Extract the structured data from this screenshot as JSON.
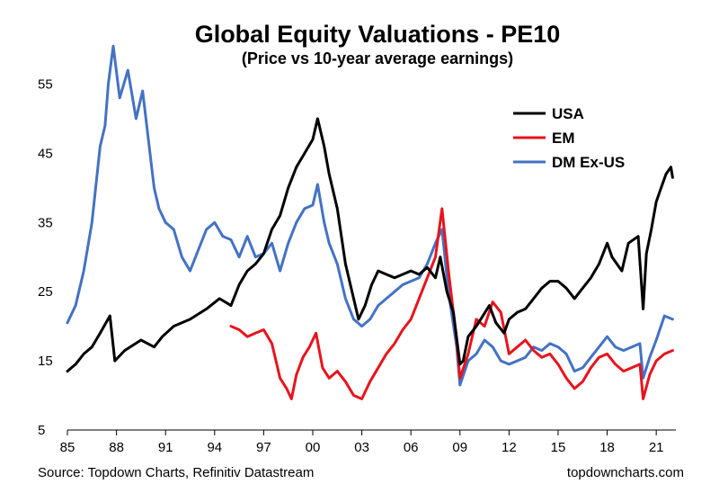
{
  "chart_data": {
    "type": "line",
    "title": "Global Equity Valuations - PE10",
    "subtitle": "(Price vs 10-year average earnings)",
    "xlabel": "",
    "ylabel": "",
    "xlim": [
      1985,
      2022.2
    ],
    "ylim": [
      5,
      60
    ],
    "xticks": [
      1985,
      1988,
      1991,
      1994,
      1997,
      2000,
      2003,
      2006,
      2009,
      2012,
      2015,
      2018,
      2021
    ],
    "xtick_labels": [
      "85",
      "88",
      "91",
      "94",
      "97",
      "00",
      "03",
      "06",
      "09",
      "12",
      "15",
      "18",
      "21"
    ],
    "yticks": [
      5,
      15,
      25,
      35,
      45,
      55
    ],
    "ytick_labels": [
      "5",
      "15",
      "25",
      "35",
      "45",
      "55"
    ],
    "grid": false,
    "legend_position": "top-right",
    "series": [
      {
        "name": "USA",
        "color": "#000000",
        "x": [
          1985.0,
          1985.5,
          1986.0,
          1986.5,
          1987.0,
          1987.6,
          1987.9,
          1988.5,
          1989.5,
          1990.3,
          1990.8,
          1991.5,
          1992.5,
          1993.5,
          1994.3,
          1995.0,
          1995.5,
          1996.0,
          1996.5,
          1997.0,
          1997.5,
          1998.0,
          1998.5,
          1999.0,
          1999.5,
          2000.0,
          2000.3,
          2000.7,
          2001.0,
          2001.5,
          2002.0,
          2002.5,
          2002.8,
          2003.2,
          2003.6,
          2004.0,
          2004.5,
          2005.0,
          2005.5,
          2006.0,
          2006.5,
          2007.0,
          2007.5,
          2007.8,
          2008.2,
          2008.6,
          2009.0,
          2009.2,
          2009.5,
          2010.0,
          2010.4,
          2010.8,
          2011.2,
          2011.7,
          2012.0,
          2012.5,
          2013.0,
          2013.5,
          2014.0,
          2014.5,
          2015.0,
          2015.5,
          2016.0,
          2016.5,
          2017.0,
          2017.5,
          2018.0,
          2018.3,
          2018.9,
          2019.3,
          2019.9,
          2020.2,
          2020.4,
          2020.7,
          2021.0,
          2021.3,
          2021.6,
          2021.9,
          2022.0
        ],
        "values": [
          13.5,
          14.5,
          16.0,
          17.0,
          19.0,
          21.5,
          15.0,
          16.5,
          18.0,
          17.0,
          18.5,
          20.0,
          21.0,
          22.5,
          24.0,
          23.0,
          26.0,
          28.0,
          29.0,
          30.5,
          34.0,
          36.0,
          40.0,
          43.0,
          45.0,
          47.0,
          50.0,
          46.0,
          42.0,
          37.0,
          29.0,
          24.0,
          21.0,
          23.0,
          26.0,
          28.0,
          27.5,
          27.0,
          27.5,
          28.0,
          27.5,
          28.5,
          27.0,
          30.0,
          25.0,
          22.0,
          14.5,
          15.0,
          18.5,
          20.0,
          21.5,
          23.0,
          20.5,
          19.0,
          21.0,
          22.0,
          22.5,
          24.0,
          25.5,
          26.5,
          26.5,
          25.5,
          24.0,
          25.5,
          27.0,
          29.0,
          32.0,
          30.0,
          28.0,
          32.0,
          33.0,
          22.5,
          30.5,
          34.0,
          38.0,
          40.0,
          42.0,
          43.0,
          41.5
        ]
      },
      {
        "name": "EM",
        "color": "#e8141d",
        "x": [
          1995.0,
          1995.5,
          1996.0,
          1996.5,
          1997.0,
          1997.5,
          1998.0,
          1998.4,
          1998.7,
          1999.0,
          1999.4,
          1999.8,
          2000.2,
          2000.6,
          2001.0,
          2001.5,
          2002.0,
          2002.5,
          2003.0,
          2003.5,
          2004.0,
          2004.5,
          2005.0,
          2005.5,
          2006.0,
          2006.5,
          2007.0,
          2007.5,
          2007.9,
          2008.3,
          2008.8,
          2009.0,
          2009.5,
          2010.0,
          2010.5,
          2011.0,
          2011.5,
          2012.0,
          2012.5,
          2013.0,
          2013.5,
          2014.0,
          2014.5,
          2015.0,
          2015.5,
          2016.0,
          2016.5,
          2017.0,
          2017.5,
          2018.0,
          2018.5,
          2019.0,
          2019.5,
          2020.0,
          2020.2,
          2020.6,
          2021.0,
          2021.5,
          2022.0
        ],
        "values": [
          20.0,
          19.5,
          18.5,
          19.0,
          19.5,
          17.5,
          12.5,
          11.0,
          9.5,
          13.0,
          15.5,
          17.0,
          19.0,
          14.0,
          12.5,
          13.5,
          12.0,
          10.0,
          9.5,
          12.0,
          14.0,
          16.0,
          17.5,
          19.5,
          21.0,
          24.0,
          27.0,
          30.0,
          37.0,
          28.0,
          18.0,
          12.5,
          16.0,
          21.0,
          20.0,
          23.5,
          22.0,
          16.0,
          17.0,
          18.0,
          16.5,
          15.5,
          16.0,
          14.5,
          12.5,
          11.0,
          12.0,
          14.0,
          15.5,
          16.0,
          14.5,
          13.5,
          14.0,
          14.5,
          9.5,
          13.0,
          15.0,
          16.0,
          16.5
        ]
      },
      {
        "name": "DM Ex-US",
        "color": "#4472c4",
        "x": [
          1985.0,
          1985.5,
          1986.0,
          1986.5,
          1987.0,
          1987.3,
          1987.5,
          1987.8,
          1988.2,
          1988.7,
          1989.2,
          1989.6,
          1990.0,
          1990.3,
          1990.6,
          1991.0,
          1991.5,
          1992.0,
          1992.5,
          1993.0,
          1993.5,
          1994.0,
          1994.5,
          1995.0,
          1995.5,
          1996.0,
          1996.5,
          1997.0,
          1997.5,
          1998.0,
          1998.5,
          1999.0,
          1999.5,
          2000.0,
          2000.3,
          2000.7,
          2001.0,
          2001.5,
          2002.0,
          2002.5,
          2003.0,
          2003.5,
          2004.0,
          2004.5,
          2005.0,
          2005.5,
          2006.0,
          2006.5,
          2007.0,
          2007.5,
          2007.9,
          2008.3,
          2008.8,
          2009.0,
          2009.5,
          2010.0,
          2010.5,
          2011.0,
          2011.5,
          2012.0,
          2012.5,
          2013.0,
          2013.5,
          2014.0,
          2014.5,
          2015.0,
          2015.5,
          2016.0,
          2016.5,
          2017.0,
          2017.5,
          2018.0,
          2018.5,
          2019.0,
          2019.5,
          2020.0,
          2020.2,
          2020.6,
          2021.0,
          2021.5,
          2022.0
        ],
        "values": [
          20.5,
          23.0,
          28.0,
          35.0,
          46.0,
          49.0,
          55.0,
          60.5,
          53.0,
          57.0,
          50.0,
          54.0,
          46.0,
          40.0,
          37.0,
          35.0,
          34.0,
          30.0,
          28.0,
          31.0,
          34.0,
          35.0,
          33.0,
          32.5,
          30.0,
          33.0,
          30.0,
          30.5,
          32.0,
          28.0,
          32.0,
          35.0,
          37.0,
          37.5,
          40.5,
          35.0,
          32.0,
          29.0,
          24.0,
          21.0,
          20.0,
          21.0,
          23.0,
          24.0,
          25.0,
          26.0,
          26.5,
          27.0,
          29.0,
          32.0,
          34.0,
          25.0,
          17.0,
          11.5,
          15.0,
          16.0,
          18.0,
          17.0,
          15.0,
          14.5,
          15.0,
          15.5,
          17.0,
          16.5,
          17.5,
          17.0,
          16.0,
          13.5,
          14.0,
          15.5,
          17.0,
          18.5,
          17.0,
          16.5,
          17.0,
          17.5,
          12.5,
          15.5,
          18.0,
          21.5,
          21.0
        ]
      }
    ],
    "source": "Source: Topdown Charts, Refinitiv Datastream",
    "watermark": "topdowncharts.com"
  }
}
